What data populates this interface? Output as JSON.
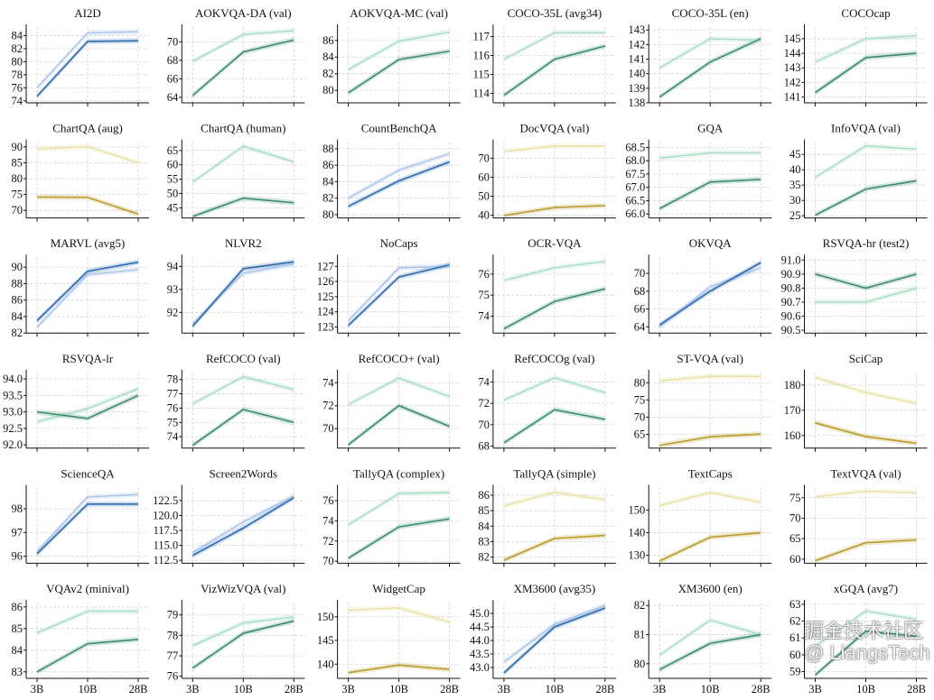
{
  "x_categories": [
    "3B",
    "10B",
    "28B"
  ],
  "themes": {
    "blue": {
      "dark": "#2c6bb0",
      "light": "#a8c3e6"
    },
    "green": {
      "dark": "#3b8c6c",
      "light": "#a6dcc3"
    },
    "gold": {
      "dark": "#b99d2c",
      "light": "#e9e0a4"
    }
  },
  "watermark": "掘金技术社区 @ LiangsTech",
  "chart_data": [
    {
      "type": "line",
      "title": "AI2D",
      "theme": "blue",
      "dark": [
        74.7,
        83.1,
        83.2
      ],
      "light": [
        76.0,
        84.4,
        84.6
      ],
      "yticks": [
        74,
        76,
        78,
        80,
        82,
        84
      ],
      "ylim": [
        73.7,
        85.3
      ]
    },
    {
      "type": "line",
      "title": "AOKVQA-DA (val)",
      "theme": "green",
      "dark": [
        64.2,
        68.9,
        70.2
      ],
      "light": [
        67.9,
        70.8,
        71.2
      ],
      "yticks": [
        64,
        66,
        68,
        70
      ],
      "ylim": [
        63.4,
        71.6
      ]
    },
    {
      "type": "line",
      "title": "AOKVQA-MC (val)",
      "theme": "green",
      "dark": [
        79.7,
        83.7,
        84.7
      ],
      "light": [
        82.5,
        85.9,
        87.0
      ],
      "yticks": [
        80,
        82,
        84,
        86
      ],
      "ylim": [
        78.5,
        87.6
      ]
    },
    {
      "type": "line",
      "title": "COCO-35L (avg34)",
      "theme": "green",
      "dark": [
        113.9,
        115.8,
        116.5
      ],
      "light": [
        115.8,
        117.2,
        117.2
      ],
      "yticks": [
        114,
        115,
        116,
        117
      ],
      "ylim": [
        113.5,
        117.5
      ]
    },
    {
      "type": "line",
      "title": "COCO-35L (en)",
      "theme": "green",
      "dark": [
        138.4,
        140.8,
        142.4
      ],
      "light": [
        140.4,
        142.4,
        142.3
      ],
      "yticks": [
        138,
        139,
        140,
        141,
        142,
        143
      ],
      "ylim": [
        138,
        143.2
      ]
    },
    {
      "type": "line",
      "title": "COCOcap",
      "theme": "green",
      "dark": [
        141.3,
        143.7,
        144.0
      ],
      "light": [
        143.4,
        145.0,
        145.2
      ],
      "yticks": [
        141,
        142,
        143,
        144,
        145
      ],
      "ylim": [
        140.6,
        145.8
      ]
    },
    {
      "type": "line",
      "title": "ChartQA (aug)",
      "theme": "gold",
      "dark": [
        74.2,
        74.1,
        68.8
      ],
      "light": [
        89.3,
        90.1,
        85.0
      ],
      "yticks": [
        70,
        75,
        80,
        85,
        90
      ],
      "ylim": [
        67.6,
        91.5
      ]
    },
    {
      "type": "line",
      "title": "ChartQA (human)",
      "theme": "green",
      "dark": [
        42.0,
        48.4,
        46.8
      ],
      "light": [
        54.0,
        66.5,
        61.0
      ],
      "yticks": [
        45,
        50,
        55,
        60,
        65
      ],
      "ylim": [
        41.5,
        67.9
      ]
    },
    {
      "type": "line",
      "title": "CountBenchQA",
      "theme": "blue",
      "dark": [
        81.0,
        84.1,
        86.4
      ],
      "light": [
        82.0,
        85.4,
        87.4
      ],
      "yticks": [
        80,
        82,
        84,
        86,
        88
      ],
      "ylim": [
        79.6,
        88.8
      ]
    },
    {
      "type": "line",
      "title": "DocVQA (val)",
      "theme": "gold",
      "dark": [
        39.8,
        44.0,
        45.0
      ],
      "light": [
        73.6,
        76.5,
        76.3
      ],
      "yticks": [
        40,
        50,
        60,
        70
      ],
      "ylim": [
        38.5,
        78.5
      ]
    },
    {
      "type": "line",
      "title": "GQA",
      "theme": "green",
      "dark": [
        66.2,
        67.2,
        67.3
      ],
      "light": [
        68.1,
        68.3,
        68.3
      ],
      "yticks": [
        66.0,
        66.5,
        67.0,
        67.5,
        68.0,
        68.5
      ],
      "ylim": [
        65.85,
        68.7
      ]
    },
    {
      "type": "line",
      "title": "InfoVQA (val)",
      "theme": "green",
      "dark": [
        25.2,
        33.7,
        36.4
      ],
      "light": [
        37.5,
        47.8,
        46.7
      ],
      "yticks": [
        25,
        30,
        35,
        40,
        45
      ],
      "ylim": [
        24.3,
        49
      ]
    },
    {
      "type": "line",
      "title": "MARVL (avg5)",
      "theme": "blue",
      "dark": [
        83.5,
        89.5,
        90.6
      ],
      "light": [
        82.7,
        89.1,
        89.7
      ],
      "yticks": [
        82,
        84,
        86,
        88,
        90
      ],
      "ylim": [
        82,
        91.2
      ]
    },
    {
      "type": "line",
      "title": "NLVR2",
      "theme": "blue",
      "dark": [
        91.4,
        93.9,
        94.2
      ],
      "light": [
        91.5,
        93.7,
        94.1
      ],
      "yticks": [
        92,
        93,
        94
      ],
      "ylim": [
        91.1,
        94.4
      ]
    },
    {
      "type": "line",
      "title": "NoCaps",
      "theme": "blue",
      "dark": [
        123.1,
        126.3,
        127.1
      ],
      "light": [
        123.4,
        126.9,
        127.0
      ],
      "yticks": [
        123,
        124,
        125,
        126,
        127
      ],
      "ylim": [
        122.6,
        127.6
      ]
    },
    {
      "type": "line",
      "title": "OCR-VQA",
      "theme": "green",
      "dark": [
        73.4,
        74.7,
        75.3
      ],
      "light": [
        75.7,
        76.3,
        76.6
      ],
      "yticks": [
        74,
        75,
        76
      ],
      "ylim": [
        73.2,
        76.8
      ]
    },
    {
      "type": "line",
      "title": "OKVQA",
      "theme": "blue",
      "dark": [
        64.2,
        68.0,
        71.2
      ],
      "light": [
        64.0,
        68.5,
        70.6
      ],
      "yticks": [
        64,
        66,
        68,
        70
      ],
      "ylim": [
        63.3,
        71.8
      ]
    },
    {
      "type": "line",
      "title": "RSVQA-hr (test2)",
      "theme": "green",
      "dark": [
        90.9,
        90.8,
        90.9
      ],
      "light": [
        90.7,
        90.7,
        90.8
      ],
      "yticks": [
        90.5,
        90.6,
        90.7,
        90.8,
        90.9,
        91.0
      ],
      "ylim": [
        90.48,
        91.02
      ]
    },
    {
      "type": "line",
      "title": "RSVQA-lr",
      "theme": "green",
      "dark": [
        93.0,
        92.8,
        93.5
      ],
      "light": [
        92.7,
        93.1,
        93.7
      ],
      "yticks": [
        92.0,
        92.5,
        93.0,
        93.5,
        94.0
      ],
      "ylim": [
        91.9,
        94.2
      ]
    },
    {
      "type": "line",
      "title": "RefCOCO (val)",
      "theme": "green",
      "dark": [
        73.4,
        75.9,
        75.0
      ],
      "light": [
        76.3,
        78.2,
        77.3
      ],
      "yticks": [
        74,
        75,
        76,
        77,
        78
      ],
      "ylim": [
        73.2,
        78.5
      ]
    },
    {
      "type": "line",
      "title": "RefCOCO+ (val)",
      "theme": "green",
      "dark": [
        68.6,
        72.0,
        70.2
      ],
      "light": [
        72.1,
        74.4,
        72.8
      ],
      "yticks": [
        70,
        72,
        74
      ],
      "ylim": [
        68.3,
        74.9
      ]
    },
    {
      "type": "line",
      "title": "RefCOCOg (val)",
      "theme": "green",
      "dark": [
        68.3,
        71.4,
        70.5
      ],
      "light": [
        72.3,
        74.4,
        73.0
      ],
      "yticks": [
        68,
        70,
        72,
        74
      ],
      "ylim": [
        67.8,
        74.9
      ]
    },
    {
      "type": "line",
      "title": "ST-VQA (val)",
      "theme": "gold",
      "dark": [
        61.8,
        64.3,
        65.1
      ],
      "light": [
        80.5,
        81.9,
        81.8
      ],
      "yticks": [
        65,
        70,
        75,
        80
      ],
      "ylim": [
        61,
        83
      ]
    },
    {
      "type": "line",
      "title": "SciCap",
      "theme": "gold",
      "dark": [
        165.0,
        159.6,
        156.9
      ],
      "light": [
        183.0,
        177.0,
        172.7
      ],
      "yticks": [
        160,
        170,
        180
      ],
      "ylim": [
        155,
        185
      ]
    },
    {
      "type": "line",
      "title": "ScienceQA",
      "theme": "blue",
      "dark": [
        96.1,
        98.2,
        98.2
      ],
      "light": [
        96.2,
        98.5,
        98.6
      ],
      "yticks": [
        96,
        97,
        98
      ],
      "ylim": [
        95.7,
        98.9
      ]
    },
    {
      "type": "line",
      "title": "Screen2Words",
      "theme": "blue",
      "dark": [
        113.3,
        117.9,
        123.0
      ],
      "light": [
        113.8,
        118.9,
        123.3
      ],
      "yticks": [
        112.5,
        115.0,
        117.5,
        120.0,
        122.5
      ],
      "ylim": [
        112,
        124.7
      ]
    },
    {
      "type": "line",
      "title": "TallyQA (complex)",
      "theme": "green",
      "dark": [
        70.3,
        73.4,
        74.2
      ],
      "light": [
        73.6,
        76.7,
        76.8
      ],
      "yticks": [
        70,
        72,
        74,
        76
      ],
      "ylim": [
        69.8,
        77.3
      ]
    },
    {
      "type": "line",
      "title": "TallyQA (simple)",
      "theme": "gold",
      "dark": [
        81.8,
        83.2,
        83.4
      ],
      "light": [
        85.3,
        86.2,
        85.7
      ],
      "yticks": [
        82,
        83,
        84,
        85,
        86
      ],
      "ylim": [
        81.6,
        86.5
      ]
    },
    {
      "type": "line",
      "title": "TextCaps",
      "theme": "gold",
      "dark": [
        127.5,
        138.0,
        140.0
      ],
      "light": [
        152.0,
        157.8,
        153.5
      ],
      "yticks": [
        130,
        140,
        150
      ],
      "ylim": [
        126.5,
        160
      ]
    },
    {
      "type": "line",
      "title": "TextVQA (val)",
      "theme": "gold",
      "dark": [
        59.6,
        64.0,
        64.7
      ],
      "light": [
        75.2,
        76.6,
        76.2
      ],
      "yticks": [
        60,
        65,
        70,
        75
      ],
      "ylim": [
        59,
        77.5
      ]
    },
    {
      "type": "line",
      "title": "VQAv2 (minival)",
      "theme": "green",
      "dark": [
        83.0,
        84.3,
        84.5
      ],
      "light": [
        84.8,
        85.8,
        85.8
      ],
      "yticks": [
        83,
        84,
        85,
        86
      ],
      "ylim": [
        82.7,
        86.2
      ]
    },
    {
      "type": "line",
      "title": "VizWizVQA (val)",
      "theme": "green",
      "dark": [
        76.4,
        78.1,
        78.7
      ],
      "light": [
        77.5,
        78.6,
        78.9
      ],
      "yticks": [
        76,
        77,
        78,
        79
      ],
      "ylim": [
        75.9,
        79.6
      ]
    },
    {
      "type": "line",
      "title": "WidgetCap",
      "theme": "gold",
      "dark": [
        138.2,
        139.8,
        138.9
      ],
      "light": [
        151.4,
        151.9,
        148.9
      ],
      "yticks": [
        140,
        145,
        150
      ],
      "ylim": [
        137,
        153
      ]
    },
    {
      "type": "line",
      "title": "XM3600 (avg35)",
      "theme": "blue",
      "dark": [
        42.8,
        44.5,
        45.2
      ],
      "light": [
        43.2,
        44.6,
        45.3
      ],
      "yticks": [
        43.0,
        43.5,
        44.0,
        44.5,
        45.0
      ],
      "ylim": [
        42.6,
        45.4
      ]
    },
    {
      "type": "line",
      "title": "XM3600 (en)",
      "theme": "green",
      "dark": [
        79.8,
        80.7,
        81.0
      ],
      "light": [
        80.3,
        81.5,
        81.0
      ],
      "yticks": [
        80,
        81,
        82
      ],
      "ylim": [
        79.5,
        82.1
      ]
    },
    {
      "type": "line",
      "title": "xGQA (avg7)",
      "theme": "green",
      "dark": [
        58.8,
        61.4,
        61.1
      ],
      "light": [
        60.5,
        62.6,
        62.1
      ],
      "yticks": [
        59,
        60,
        61,
        62,
        63
      ],
      "ylim": [
        58.6,
        63.1
      ]
    }
  ]
}
